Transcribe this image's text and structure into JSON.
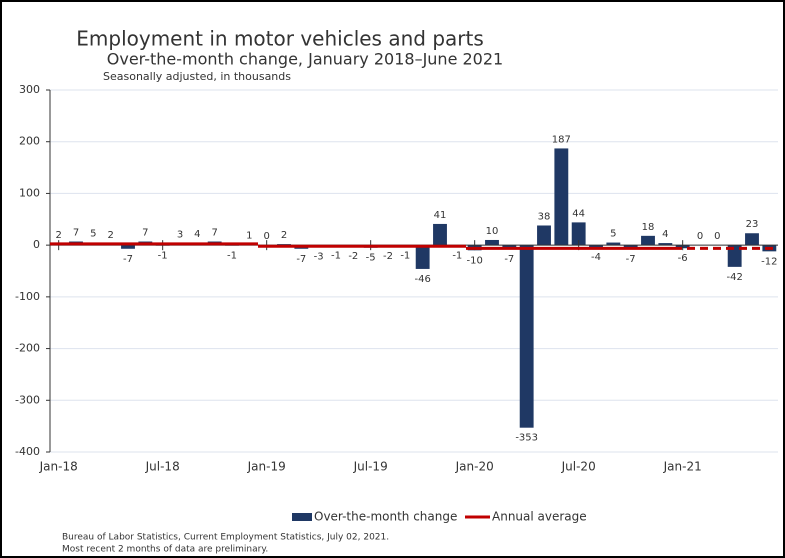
{
  "chart_data": {
    "type": "bar",
    "title": "Employment in motor vehicles and parts",
    "subtitle": "Over-the-month change, January 2018–June 2021",
    "note": "Seasonally adjusted, in thousands",
    "categories": [
      "Jan-18",
      null,
      null,
      null,
      null,
      null,
      "Jul-18",
      null,
      null,
      null,
      null,
      null,
      "Jan-19",
      null,
      null,
      null,
      null,
      null,
      "Jul-19",
      null,
      null,
      null,
      null,
      null,
      "Jan-20",
      null,
      null,
      null,
      null,
      null,
      "Jul-20",
      null,
      null,
      null,
      null,
      null,
      "Jan-21",
      null,
      null,
      null,
      null,
      null
    ],
    "series": [
      {
        "name": "Over-the-month change",
        "color": "#1f3864",
        "values": [
          2,
          7,
          5,
          2,
          -7,
          7,
          -1,
          3,
          4,
          7,
          -1,
          1,
          0,
          2,
          -7,
          -3,
          -1,
          -2,
          -5,
          -2,
          -1,
          -46,
          41,
          -1,
          -10,
          10,
          -7,
          -353,
          38,
          187,
          44,
          -4,
          5,
          -7,
          18,
          4,
          -6,
          0,
          0,
          -42,
          23,
          -12
        ]
      }
    ],
    "annual_average": {
      "name": "Annual average",
      "color": "#c00000",
      "values": [
        2.4,
        -2.1,
        -6.3,
        -6.2
      ],
      "dashed": [
        false,
        false,
        false,
        true
      ]
    },
    "ylim": [
      -400,
      300
    ],
    "yticks": [
      -400,
      -300,
      -200,
      -100,
      0,
      100,
      200,
      300
    ],
    "grid": true,
    "legend": "bottom",
    "source": "Bureau of Labor Statistics, Current Employment Statistics, July 02, 2021.",
    "footnote": "Most recent 2 months of data are preliminary."
  }
}
